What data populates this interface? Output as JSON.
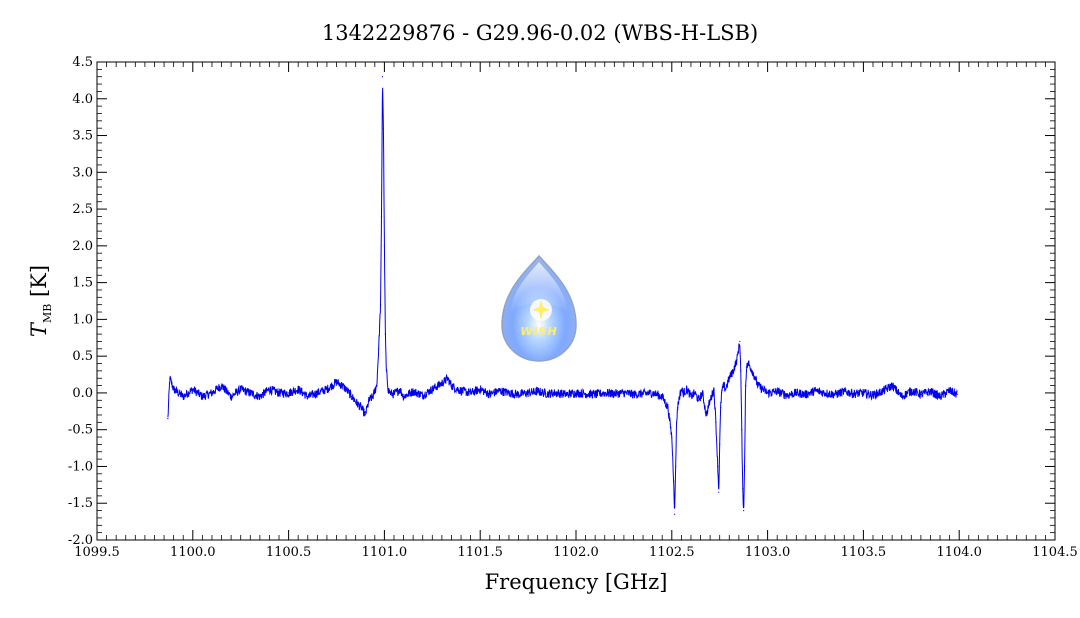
{
  "chart_data": {
    "type": "line",
    "title": "1342229876 - G29.96-0.02 (WBS-H-LSB)",
    "xlabel": "Frequency [GHz]",
    "ylabel": "T",
    "ylabel_subscript": "MB",
    "ylabel_unit": "[K]",
    "xlim": [
      1099.5,
      1104.5
    ],
    "ylim": [
      -2.0,
      4.5
    ],
    "x_ticks": [
      1099.5,
      1100.0,
      1100.5,
      1101.0,
      1101.5,
      1102.0,
      1102.5,
      1103.0,
      1103.5,
      1104.0,
      1104.5
    ],
    "x_tick_labels": [
      "1099.5",
      "1100.0",
      "1100.5",
      "1101.0",
      "1101.5",
      "1102.0",
      "1102.5",
      "1103.0",
      "1103.5",
      "1104.0",
      "1104.5"
    ],
    "y_ticks": [
      -2.0,
      -1.5,
      -1.0,
      -0.5,
      0.0,
      0.5,
      1.0,
      1.5,
      2.0,
      2.5,
      3.0,
      3.5,
      4.0,
      4.5
    ],
    "y_tick_labels": [
      "-2.0",
      "-1.5",
      "-1.0",
      "-0.5",
      "0.0",
      "0.5",
      "1.0",
      "1.5",
      "2.0",
      "2.5",
      "3.0",
      "3.5",
      "4.0",
      "4.5"
    ],
    "grid": false,
    "logo_text": "WISH",
    "series": [
      {
        "color": "#0000ee",
        "x": [
          1099.87,
          1099.88,
          1099.9,
          1099.95,
          1100.0,
          1100.05,
          1100.1,
          1100.15,
          1100.2,
          1100.25,
          1100.3,
          1100.35,
          1100.4,
          1100.45,
          1100.5,
          1100.55,
          1100.6,
          1100.65,
          1100.7,
          1100.75,
          1100.78,
          1100.8,
          1100.83,
          1100.86,
          1100.88,
          1100.9,
          1100.92,
          1100.94,
          1100.96,
          1100.97,
          1100.98,
          1100.985,
          1100.99,
          1100.995,
          1101.0,
          1101.005,
          1101.01,
          1101.02,
          1101.03,
          1101.05,
          1101.08,
          1101.1,
          1101.15,
          1101.2,
          1101.25,
          1101.28,
          1101.31,
          1101.33,
          1101.35,
          1101.38,
          1101.4,
          1101.45,
          1101.5,
          1101.55,
          1101.6,
          1101.65,
          1101.7,
          1101.75,
          1101.8,
          1101.85,
          1101.9,
          1101.95,
          1102.0,
          1102.05,
          1102.1,
          1102.15,
          1102.2,
          1102.25,
          1102.3,
          1102.35,
          1102.4,
          1102.45,
          1102.48,
          1102.5,
          1102.51,
          1102.515,
          1102.52,
          1102.525,
          1102.53,
          1102.54,
          1102.55,
          1102.56,
          1102.58,
          1102.6,
          1102.62,
          1102.64,
          1102.66,
          1102.68,
          1102.7,
          1102.72,
          1102.73,
          1102.74,
          1102.745,
          1102.75,
          1102.755,
          1102.76,
          1102.77,
          1102.78,
          1102.8,
          1102.82,
          1102.84,
          1102.855,
          1102.86,
          1102.865,
          1102.87,
          1102.875,
          1102.88,
          1102.885,
          1102.89,
          1102.9,
          1102.92,
          1102.95,
          1103.0,
          1103.05,
          1103.1,
          1103.15,
          1103.2,
          1103.25,
          1103.3,
          1103.35,
          1103.4,
          1103.45,
          1103.5,
          1103.55,
          1103.6,
          1103.65,
          1103.7,
          1103.75,
          1103.8,
          1103.85,
          1103.9,
          1103.95,
          1103.99
        ],
        "y": [
          -0.35,
          0.2,
          0.05,
          -0.05,
          0.05,
          -0.05,
          0.0,
          0.1,
          -0.05,
          0.05,
          0.0,
          -0.05,
          0.05,
          0.0,
          0.0,
          0.05,
          -0.05,
          0.0,
          0.05,
          0.15,
          0.1,
          0.05,
          -0.05,
          -0.15,
          -0.2,
          -0.3,
          -0.1,
          -0.05,
          0.1,
          0.6,
          1.2,
          2.4,
          4.3,
          3.6,
          2.0,
          0.8,
          0.3,
          0.05,
          0.0,
          -0.02,
          0.05,
          -0.05,
          0.02,
          -0.03,
          0.05,
          0.1,
          0.15,
          0.2,
          0.1,
          0.05,
          0.03,
          0.0,
          0.05,
          -0.02,
          0.03,
          0.0,
          -0.02,
          0.0,
          0.02,
          -0.01,
          0.0,
          -0.02,
          0.0,
          -0.01,
          -0.02,
          0.0,
          -0.01,
          0.0,
          -0.02,
          -0.01,
          0.0,
          -0.05,
          -0.2,
          -0.6,
          -1.2,
          -1.65,
          -1.0,
          -0.4,
          -0.2,
          -0.05,
          0.05,
          0.0,
          0.05,
          -0.05,
          0.0,
          -0.1,
          0.0,
          -0.3,
          -0.1,
          0.05,
          -0.4,
          -1.0,
          -1.35,
          -0.7,
          -0.2,
          0.0,
          0.1,
          0.05,
          0.2,
          0.3,
          0.45,
          0.7,
          0.3,
          -0.5,
          -1.3,
          -1.6,
          -1.0,
          0.1,
          0.35,
          0.4,
          0.3,
          0.1,
          0.0,
          0.02,
          -0.03,
          0.0,
          -0.02,
          0.03,
          0.0,
          -0.02,
          0.02,
          -0.01,
          0.0,
          -0.03,
          0.02,
          0.1,
          -0.05,
          0.03,
          -0.02,
          0.02,
          -0.05,
          0.03,
          -0.02
        ]
      }
    ]
  }
}
